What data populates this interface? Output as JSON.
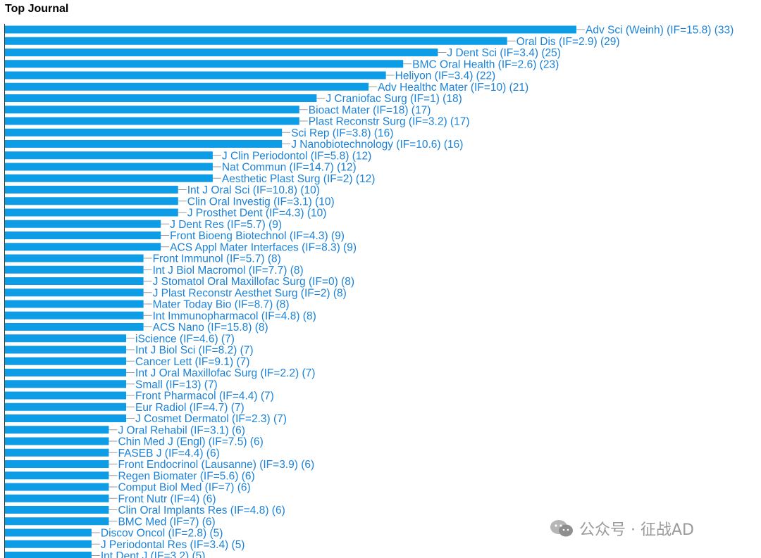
{
  "chart_data": {
    "type": "bar",
    "orientation": "horizontal",
    "title": "Top Journal",
    "xlabel": "",
    "ylabel": "",
    "bar_color": "#0d9ce6",
    "label_color": "#1a82d8",
    "grid": false,
    "categories": [
      "Adv Sci (Weinh) (IF=15.8) (33)",
      "Oral Dis (IF=2.9) (29)",
      "J Dent Sci (IF=3.4) (25)",
      "BMC Oral Health (IF=2.6) (23)",
      "Heliyon (IF=3.4) (22)",
      "Adv Healthc Mater (IF=10) (21)",
      "J Craniofac Surg (IF=1) (18)",
      "Bioact Mater (IF=18) (17)",
      "Plast Reconstr Surg (IF=3.2) (17)",
      "Sci Rep (IF=3.8) (16)",
      "J Nanobiotechnology (IF=10.6) (16)",
      "J Clin Periodontol (IF=5.8) (12)",
      "Nat Commun (IF=14.7) (12)",
      "Aesthetic Plast Surg (IF=2) (12)",
      "Int J Oral Sci (IF=10.8) (10)",
      "Clin Oral Investig (IF=3.1) (10)",
      "J Prosthet Dent (IF=4.3) (10)",
      "J Dent Res (IF=5.7) (9)",
      "Front Bioeng Biotechnol (IF=4.3) (9)",
      "ACS Appl Mater Interfaces (IF=8.3) (9)",
      "Front Immunol (IF=5.7) (8)",
      "Int J Biol Macromol (IF=7.7) (8)",
      "J Stomatol Oral Maxillofac Surg (IF=0) (8)",
      "J Plast Reconstr Aesthet Surg (IF=2) (8)",
      "Mater Today Bio (IF=8.7) (8)",
      "Int Immunopharmacol (IF=4.8) (8)",
      "ACS Nano (IF=15.8) (8)",
      "iScience (IF=4.6) (7)",
      "Int J Biol Sci (IF=8.2) (7)",
      "Cancer Lett (IF=9.1) (7)",
      "Int J Oral Maxillofac Surg (IF=2.2) (7)",
      "Small (IF=13) (7)",
      "Front Pharmacol (IF=4.4) (7)",
      "Eur Radiol (IF=4.7) (7)",
      "J Cosmet Dermatol (IF=2.3) (7)",
      "J Oral Rehabil (IF=3.1) (6)",
      "Chin Med J (Engl) (IF=7.5) (6)",
      "FASEB J (IF=4.4) (6)",
      "Front Endocrinol (Lausanne) (IF=3.9) (6)",
      "Regen Biomater (IF=5.6) (6)",
      "Comput Biol Med (IF=7) (6)",
      "Front Nutr (IF=4) (6)",
      "Clin Oral Implants Res (IF=4.8) (6)",
      "BMC Med (IF=7) (6)",
      "Discov Oncol (IF=2.8) (5)",
      "J Periodontal Res (IF=3.4) (5)",
      "Int Dent J (IF=3.2) (5)"
    ],
    "values": [
      33,
      29,
      25,
      23,
      22,
      21,
      18,
      17,
      17,
      16,
      16,
      12,
      12,
      12,
      10,
      10,
      10,
      9,
      9,
      9,
      8,
      8,
      8,
      8,
      8,
      8,
      8,
      7,
      7,
      7,
      7,
      7,
      7,
      7,
      7,
      6,
      6,
      6,
      6,
      6,
      6,
      6,
      6,
      6,
      5,
      5,
      5
    ],
    "xlim": [
      0,
      33
    ]
  },
  "watermark": {
    "text": "公众号 · 征战AD",
    "color": "#9a9a9a"
  }
}
